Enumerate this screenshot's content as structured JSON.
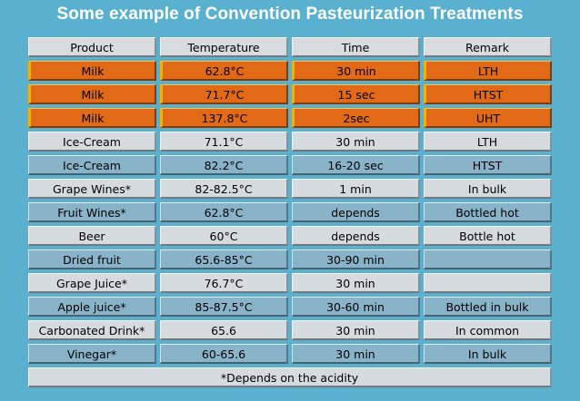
{
  "title": "Some example of Convention Pasteurization Treatments",
  "table": {
    "headers": [
      "Product",
      "Temperature",
      "Time",
      "Remark"
    ],
    "rows": [
      {
        "style": "orange",
        "cells": [
          "Milk",
          "62.8°C",
          "30 min",
          "LTH"
        ]
      },
      {
        "style": "orange",
        "cells": [
          "Milk",
          "71.7°C",
          "15 sec",
          "HTST"
        ]
      },
      {
        "style": "orange",
        "cells": [
          "Milk",
          "137.8°C",
          "2sec",
          "UHT"
        ]
      },
      {
        "style": "light",
        "cells": [
          "Ice-Cream",
          "71.1°C",
          "30 min",
          "LTH"
        ]
      },
      {
        "style": "blue",
        "cells": [
          "Ice-Cream",
          "82.2°C",
          "16-20 sec",
          "HTST"
        ]
      },
      {
        "style": "light",
        "cells": [
          "Grape Wines*",
          "82-82.5°C",
          "1 min",
          "In bulk"
        ]
      },
      {
        "style": "blue",
        "cells": [
          "Fruit Wines*",
          "62.8°C",
          "depends",
          "Bottled hot"
        ]
      },
      {
        "style": "light",
        "cells": [
          "Beer",
          "60°C",
          "depends",
          "Bottle hot"
        ]
      },
      {
        "style": "blue",
        "cells": [
          "Dried fruit",
          "65.6-85°C",
          "30-90 min",
          ""
        ]
      },
      {
        "style": "light",
        "cells": [
          "Grape Juice*",
          "76.7°C",
          "30 min",
          ""
        ]
      },
      {
        "style": "blue",
        "cells": [
          "Apple juice*",
          "85-87.5°C",
          "30-60 min",
          "Bottled in bulk"
        ]
      },
      {
        "style": "light",
        "cells": [
          "Carbonated Drink*",
          "65.6",
          "30 min",
          "In common"
        ]
      },
      {
        "style": "blue",
        "cells": [
          "Vinegar*",
          "60-65.6",
          "30 min",
          "In bulk"
        ]
      }
    ],
    "footnote": "*Depends on the acidity"
  },
  "colors": {
    "background": "#5ab0cf",
    "highlight_row": "#e26a17",
    "light_row": "#d6dbe0",
    "blue_row": "#88b3c9"
  }
}
